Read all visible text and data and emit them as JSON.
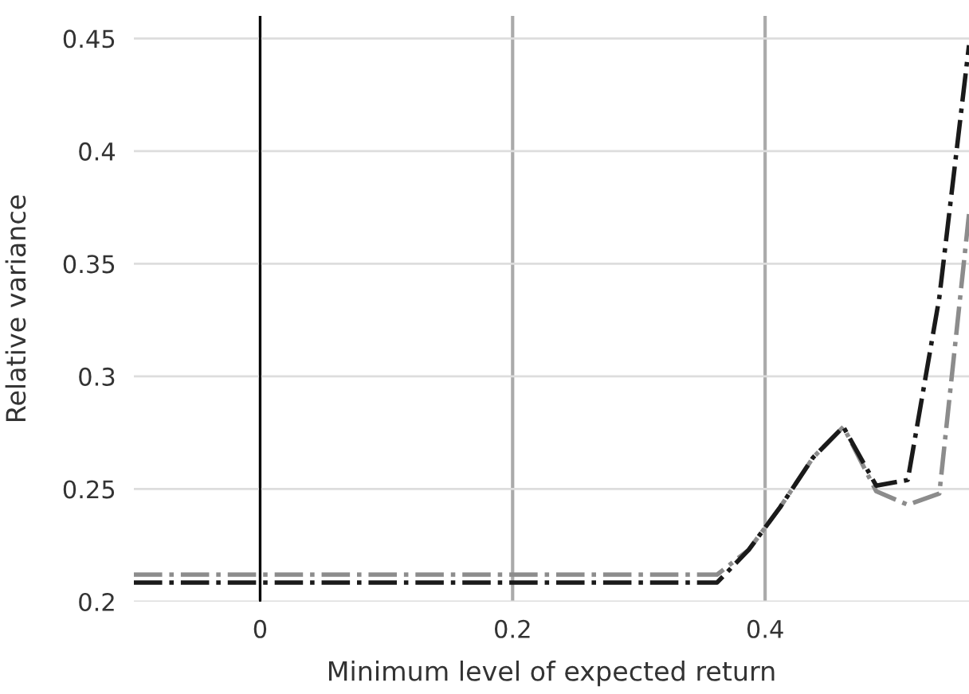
{
  "chart_data": {
    "type": "line",
    "xlabel": "Minimum level of expected return",
    "ylabel": "Relative variance",
    "x": [
      -0.1,
      0.362,
      0.387,
      0.412,
      0.438,
      0.462,
      0.488,
      0.513,
      0.538,
      0.5615
    ],
    "series": [
      {
        "color": "#8c8c8c",
        "values": [
          0.212,
          0.212,
          0.223,
          0.242,
          0.264,
          0.2776,
          0.249,
          0.243,
          0.248,
          0.372
        ]
      },
      {
        "color": "#1a1a1a",
        "values": [
          0.2085,
          0.2085,
          0.223,
          0.242,
          0.264,
          0.2776,
          0.2515,
          0.254,
          0.335,
          0.447
        ]
      }
    ],
    "xlim": [
      -0.1,
      0.5615
    ],
    "ylim": [
      0.2,
      0.46
    ],
    "xticks": [
      0,
      0.2,
      0.4
    ],
    "yticks": [
      0.2,
      0.25,
      0.3,
      0.35,
      0.4,
      0.45
    ],
    "ref_lines": [
      {
        "axis": "x",
        "value": 0,
        "color": "#000000"
      }
    ],
    "grid": true,
    "line_style": "dashdot",
    "marker": "none",
    "legend": false
  }
}
